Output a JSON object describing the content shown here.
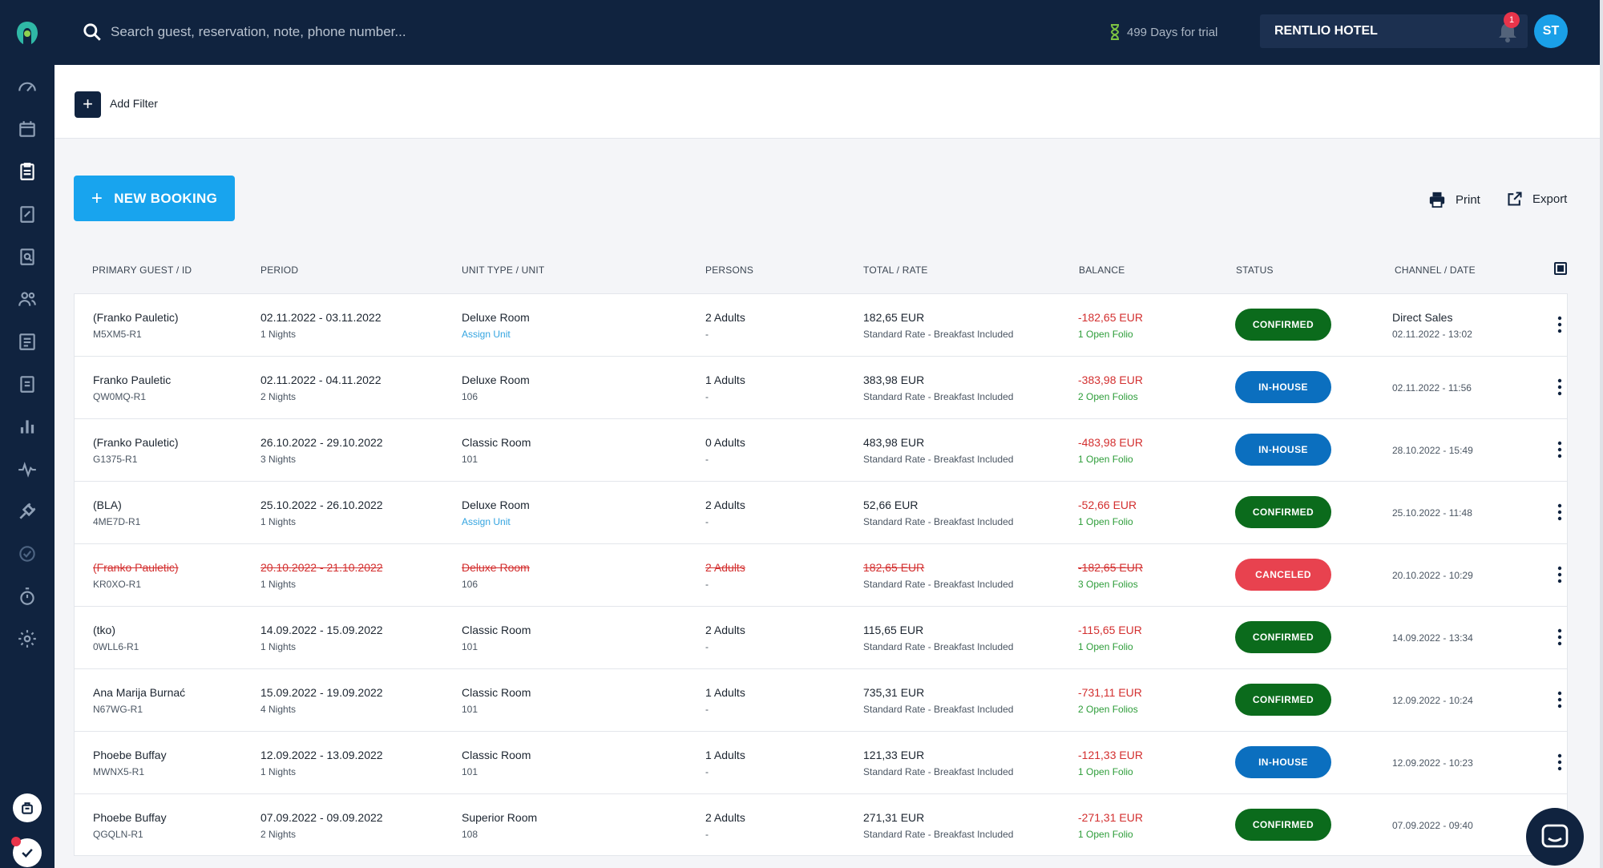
{
  "search": {
    "placeholder": "Search guest, reservation, note, phone number..."
  },
  "trial": {
    "text": "499 Days for trial"
  },
  "hotel": {
    "name": "RENTLIO HOTEL"
  },
  "notifications": {
    "count": "1"
  },
  "user": {
    "initials": "ST"
  },
  "filter": {
    "add_label": "Add Filter"
  },
  "actions": {
    "new_booking": "NEW BOOKING",
    "print": "Print",
    "export": "Export"
  },
  "columns": {
    "guest": "PRIMARY GUEST / ID",
    "period": "PERIOD",
    "unit": "UNIT TYPE / UNIT",
    "persons": "PERSONS",
    "total": "TOTAL / RATE",
    "balance": "BALANCE",
    "status": "STATUS",
    "channel": "CHANNEL / DATE"
  },
  "rows": [
    {
      "guest": "(Franko Pauletic)",
      "id": "M5XM5-R1",
      "period": "02.11.2022 - 03.11.2022",
      "nights": "1 Nights",
      "unit_type": "Deluxe Room",
      "unit": "Assign Unit",
      "persons": "2 Adults",
      "persons_sub": "-",
      "total": "182,65 EUR",
      "rate": "Standard Rate - Breakfast Included",
      "balance": "-182,65 EUR",
      "folio": "1 Open Folio",
      "status": "CONFIRMED",
      "channel": "Direct Sales",
      "date": "02.11.2022 - 13:02"
    },
    {
      "guest": "Franko Pauletic",
      "id": "QW0MQ-R1",
      "period": "02.11.2022 - 04.11.2022",
      "nights": "2 Nights",
      "unit_type": "Deluxe Room",
      "unit": "106",
      "persons": "1 Adults",
      "persons_sub": "-",
      "total": "383,98 EUR",
      "rate": "Standard Rate - Breakfast Included",
      "balance": "-383,98 EUR",
      "folio": "2 Open Folios",
      "status": "IN-HOUSE",
      "channel": "",
      "date": "02.11.2022 - 11:56"
    },
    {
      "guest": "(Franko Pauletic)",
      "id": "G1375-R1",
      "period": "26.10.2022 - 29.10.2022",
      "nights": "3 Nights",
      "unit_type": "Classic Room",
      "unit": "101",
      "persons": "0 Adults",
      "persons_sub": "-",
      "total": "483,98 EUR",
      "rate": "Standard Rate - Breakfast Included",
      "balance": "-483,98 EUR",
      "folio": "1 Open Folio",
      "status": "IN-HOUSE",
      "channel": "",
      "date": "28.10.2022 - 15:49"
    },
    {
      "guest": "(BLA)",
      "id": "4ME7D-R1",
      "period": "25.10.2022 - 26.10.2022",
      "nights": "1 Nights",
      "unit_type": "Deluxe Room",
      "unit": "Assign Unit",
      "persons": "2 Adults",
      "persons_sub": "-",
      "total": "52,66 EUR",
      "rate": "Standard Rate - Breakfast Included",
      "balance": "-52,66 EUR",
      "folio": "1 Open Folio",
      "status": "CONFIRMED",
      "channel": "",
      "date": "25.10.2022 - 11:48"
    },
    {
      "guest": "(Franko Pauletic)",
      "id": "KR0XO-R1",
      "period": "20.10.2022 - 21.10.2022",
      "nights": "1 Nights",
      "unit_type": "Deluxe Room",
      "unit": "106",
      "persons": "2 Adults",
      "persons_sub": "-",
      "total": "182,65 EUR",
      "rate": "Standard Rate - Breakfast Included",
      "balance": "-182,65 EUR",
      "folio": "3 Open Folios",
      "status": "CANCELED",
      "channel": "",
      "date": "20.10.2022 - 10:29"
    },
    {
      "guest": "(tko)",
      "id": "0WLL6-R1",
      "period": "14.09.2022 - 15.09.2022",
      "nights": "1 Nights",
      "unit_type": "Classic Room",
      "unit": "101",
      "persons": "2 Adults",
      "persons_sub": "-",
      "total": "115,65 EUR",
      "rate": "Standard Rate - Breakfast Included",
      "balance": "-115,65 EUR",
      "folio": "1 Open Folio",
      "status": "CONFIRMED",
      "channel": "",
      "date": "14.09.2022 - 13:34"
    },
    {
      "guest": "Ana Marija Burnać",
      "id": "N67WG-R1",
      "period": "15.09.2022 - 19.09.2022",
      "nights": "4 Nights",
      "unit_type": "Classic Room",
      "unit": "101",
      "persons": "1 Adults",
      "persons_sub": "-",
      "total": "735,31 EUR",
      "rate": "Standard Rate - Breakfast Included",
      "balance": "-731,11 EUR",
      "folio": "2 Open Folios",
      "status": "CONFIRMED",
      "channel": "",
      "date": "12.09.2022 - 10:24"
    },
    {
      "guest": "Phoebe Buffay",
      "id": "MWNX5-R1",
      "period": "12.09.2022 - 13.09.2022",
      "nights": "1 Nights",
      "unit_type": "Classic Room",
      "unit": "101",
      "persons": "1 Adults",
      "persons_sub": "-",
      "total": "121,33 EUR",
      "rate": "Standard Rate - Breakfast Included",
      "balance": "-121,33 EUR",
      "folio": "1 Open Folio",
      "status": "IN-HOUSE",
      "channel": "",
      "date": "12.09.2022 - 10:23"
    },
    {
      "guest": "Phoebe Buffay",
      "id": "QGQLN-R1",
      "period": "07.09.2022 - 09.09.2022",
      "nights": "2 Nights",
      "unit_type": "Superior Room",
      "unit": "108",
      "persons": "2 Adults",
      "persons_sub": "-",
      "total": "271,31 EUR",
      "rate": "Standard Rate - Breakfast Included",
      "balance": "-271,31 EUR",
      "folio": "1 Open Folio",
      "status": "CONFIRMED",
      "channel": "",
      "date": "07.09.2022 - 09:40"
    }
  ],
  "colors": {
    "confirmed": "#0b6b1c",
    "in_house": "#0b6fbf",
    "canceled": "#e8424f",
    "accent": "#18a4ee",
    "nav": "#10233f"
  }
}
